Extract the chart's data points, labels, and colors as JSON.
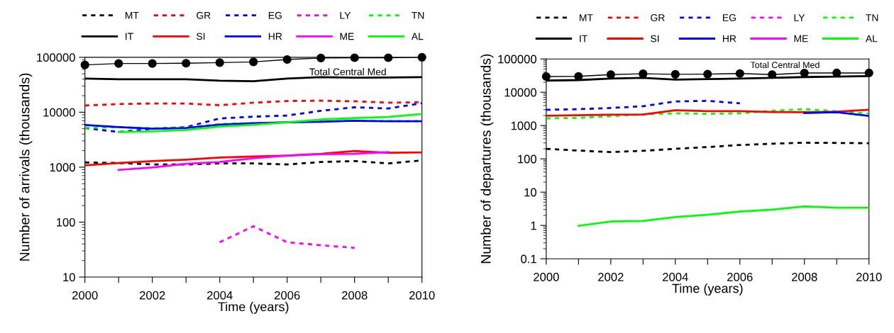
{
  "chart_data": [
    {
      "type": "line",
      "ylabel": "Number of arrivals (thousands)",
      "xlabel": "Time (years)",
      "log": "y",
      "legend": "top",
      "grid": false,
      "x": [
        2000,
        2001,
        2002,
        2003,
        2004,
        2005,
        2006,
        2007,
        2008,
        2009,
        2010
      ],
      "xlim": [
        2000,
        2010
      ],
      "xticks": [
        2000,
        {
          "value": 2001,
          "label": null
        },
        2002,
        {
          "value": 2003,
          "label": null
        },
        2004,
        {
          "value": 2005,
          "label": null
        },
        2006,
        {
          "value": 2007,
          "label": null
        },
        2008,
        {
          "value": 2009,
          "label": null
        },
        2010
      ],
      "ylim": [
        10,
        100000
      ],
      "yticks": [
        10,
        100,
        1000,
        10000,
        100000
      ],
      "annotations": [
        "Total Central Med"
      ],
      "series": [
        {
          "name": "MT",
          "color": "#000000",
          "line_style": "dotted",
          "values": [
            1220,
            1190,
            1120,
            1120,
            1170,
            1170,
            1120,
            1240,
            1290,
            1170,
            1330
          ]
        },
        {
          "name": "GR",
          "color": "#ff0000",
          "line_style": "dotted",
          "values": [
            13300,
            14100,
            14400,
            14400,
            13400,
            14900,
            16000,
            16200,
            15800,
            14900,
            15200
          ]
        },
        {
          "name": "EG",
          "color": "#0000ff",
          "line_style": "dotted",
          "values": [
            5160,
            4370,
            5000,
            5350,
            7700,
            8300,
            8700,
            10600,
            12300,
            11700,
            14600
          ]
        },
        {
          "name": "LY",
          "color": "#ff00ff",
          "line_style": "dotted",
          "values": [
            null,
            null,
            null,
            null,
            43,
            84,
            43,
            38,
            34,
            null,
            null
          ]
        },
        {
          "name": "TN",
          "color": "#00ff00",
          "line_style": "dotted",
          "values": [
            5200,
            5350,
            5100,
            5200,
            6100,
            6300,
            6550,
            6800,
            7000,
            6900,
            6900
          ]
        },
        {
          "name": "IT",
          "color": "#000000",
          "line_style": "solid",
          "values": [
            41100,
            39700,
            39700,
            39700,
            37500,
            36700,
            41000,
            43500,
            42500,
            43000,
            43500
          ]
        },
        {
          "name": "SI",
          "color": "#ff0000",
          "line_style": "solid",
          "values": [
            1080,
            1190,
            1290,
            1370,
            1500,
            1560,
            1620,
            1750,
            1970,
            1830,
            1860
          ]
        },
        {
          "name": "HR",
          "color": "#0000ff",
          "line_style": "solid",
          "values": [
            5870,
            5350,
            5000,
            5150,
            5960,
            6300,
            6550,
            6700,
            7000,
            6850,
            6850
          ]
        },
        {
          "name": "ME",
          "color": "#ff00ff",
          "line_style": "solid",
          "values": [
            null,
            890,
            990,
            1150,
            1240,
            1450,
            1620,
            1720,
            1750,
            1880,
            null
          ]
        },
        {
          "name": "AL",
          "color": "#00ff00",
          "line_style": "solid",
          "values": [
            null,
            4370,
            4500,
            4750,
            5480,
            5900,
            6550,
            7350,
            7800,
            8200,
            9300
          ]
        },
        {
          "color": "#000000",
          "line_style": "solid",
          "marker": "circle",
          "values": [
            72600,
            77000,
            77000,
            78000,
            80000,
            82400,
            91000,
            97000,
            98000,
            98000,
            100000
          ]
        }
      ]
    },
    {
      "type": "line",
      "ylabel": "Number of departures (thousands)",
      "xlabel": "Time (years)",
      "log": "y",
      "legend": "top",
      "grid": false,
      "x": [
        2000,
        2001,
        2002,
        2003,
        2004,
        2005,
        2006,
        2007,
        2008,
        2009,
        2010
      ],
      "xlim": [
        2000,
        2010
      ],
      "xticks": [
        2000,
        {
          "value": 2001,
          "label": null
        },
        2002,
        {
          "value": 2003,
          "label": null
        },
        2004,
        {
          "value": 2005,
          "label": null
        },
        2006,
        {
          "value": 2007,
          "label": null
        },
        2008,
        {
          "value": 2009,
          "label": null
        },
        2010
      ],
      "ylim": [
        0.1,
        100000
      ],
      "yticks": [
        0.1,
        1,
        10,
        100,
        1000,
        10000,
        100000
      ],
      "annotations": [
        "Total Central Med"
      ],
      "series": [
        {
          "name": "MT",
          "color": "#000000",
          "line_style": "dotted",
          "values": [
            200,
            177,
            160,
            174,
            200,
            226,
            260,
            285,
            305,
            300,
            295
          ]
        },
        {
          "name": "GR",
          "color": "#ff0000",
          "line_style": "dotted",
          "values": [
            null,
            null,
            null,
            null,
            null,
            null,
            null,
            null,
            null,
            null,
            null
          ]
        },
        {
          "name": "EG",
          "color": "#0000ff",
          "line_style": "dotted",
          "values": [
            2970,
            3100,
            3380,
            3800,
            5300,
            5500,
            4650,
            null,
            null,
            null,
            null
          ]
        },
        {
          "name": "LY",
          "color": "#ff00ff",
          "line_style": "dotted",
          "values": [
            null,
            null,
            null,
            null,
            null,
            null,
            null,
            null,
            null,
            null,
            null
          ]
        },
        {
          "name": "TN",
          "color": "#00ff00",
          "line_style": "dotted",
          "values": [
            1640,
            1700,
            1920,
            2170,
            2330,
            2250,
            2330,
            2780,
            3100,
            2700,
            2300
          ]
        },
        {
          "name": "IT",
          "color": "#000000",
          "line_style": "solid",
          "values": [
            22400,
            23200,
            25700,
            27000,
            24000,
            24900,
            25700,
            27000,
            28600,
            29600,
            30600
          ]
        },
        {
          "name": "SI",
          "color": "#ff0000",
          "line_style": "solid",
          "values": [
            1970,
            2040,
            2110,
            2150,
            2870,
            2700,
            2700,
            2550,
            2520,
            2600,
            2970
          ]
        },
        {
          "name": "HR",
          "color": "#0000ff",
          "line_style": "solid",
          "values": [
            null,
            null,
            null,
            null,
            null,
            null,
            null,
            null,
            2370,
            2520,
            1940
          ]
        },
        {
          "name": "ME",
          "color": "#ff00ff",
          "line_style": "solid",
          "values": [
            null,
            null,
            null,
            null,
            null,
            null,
            null,
            null,
            null,
            null,
            null
          ]
        },
        {
          "name": "AL",
          "color": "#00ff00",
          "line_style": "solid",
          "values": [
            null,
            0.97,
            1.31,
            1.37,
            1.79,
            2.1,
            2.6,
            3.0,
            3.7,
            3.4,
            3.4
          ]
        },
        {
          "color": "#000000",
          "line_style": "solid",
          "marker": "circle",
          "values": [
            29600,
            30000,
            34000,
            35800,
            34500,
            35000,
            36500,
            34000,
            37800,
            38000,
            38000
          ]
        }
      ]
    }
  ]
}
